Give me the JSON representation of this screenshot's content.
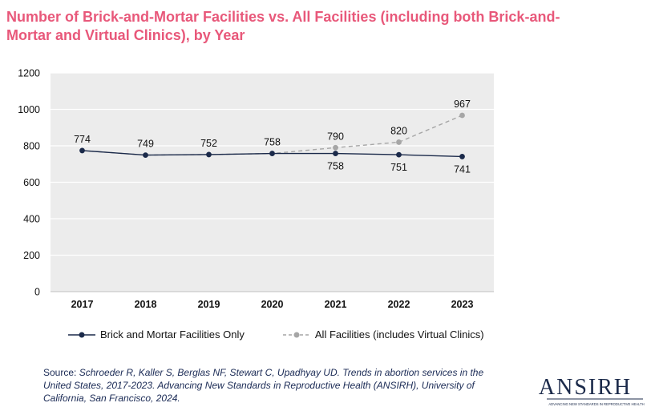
{
  "title": "Number of Brick-and-Mortar Facilities vs. All Facilities (including both Brick-and-Mortar and Virtual Clinics), by Year",
  "colors": {
    "title": "#e8587a",
    "brick": "#1b2a4a",
    "all": "#a6a6a6",
    "plot_bg": "#ececec",
    "grid": "#ffffff"
  },
  "chart_data": {
    "type": "line",
    "categories": [
      "2017",
      "2018",
      "2019",
      "2020",
      "2021",
      "2022",
      "2023"
    ],
    "ylim": [
      0,
      1200
    ],
    "yticks": [
      0,
      200,
      400,
      600,
      800,
      1000,
      1200
    ],
    "grid": true,
    "legend_position": "bottom",
    "series": [
      {
        "name": "Brick and Mortar Facilities Only",
        "values": [
          774,
          749,
          752,
          758,
          758,
          751,
          741
        ],
        "labels": [
          "",
          "",
          "",
          "",
          "758",
          "751",
          "741"
        ],
        "style": "solid",
        "color": "#1b2a4a"
      },
      {
        "name": "All Facilities (includes Virtual Clinics)",
        "values": [
          774,
          749,
          752,
          758,
          790,
          820,
          967
        ],
        "labels": [
          "774",
          "749",
          "752",
          "758",
          "790",
          "820",
          "967"
        ],
        "style": "dashed",
        "color": "#a6a6a6"
      }
    ]
  },
  "source": {
    "prefix": "Source: ",
    "citation": "Schroeder R, Kaller S, Berglas NF, Stewart C, Upadhyay UD. Trends in abortion services in the United States, 2017-2023. Advancing New Standards in Reproductive Health (ANSIRH), University of California, San Francisco, 2024."
  },
  "logo": {
    "text": "ANSIRH",
    "tagline": "ADVANCING NEW STANDARDS IN REPRODUCTIVE HEALTH"
  }
}
